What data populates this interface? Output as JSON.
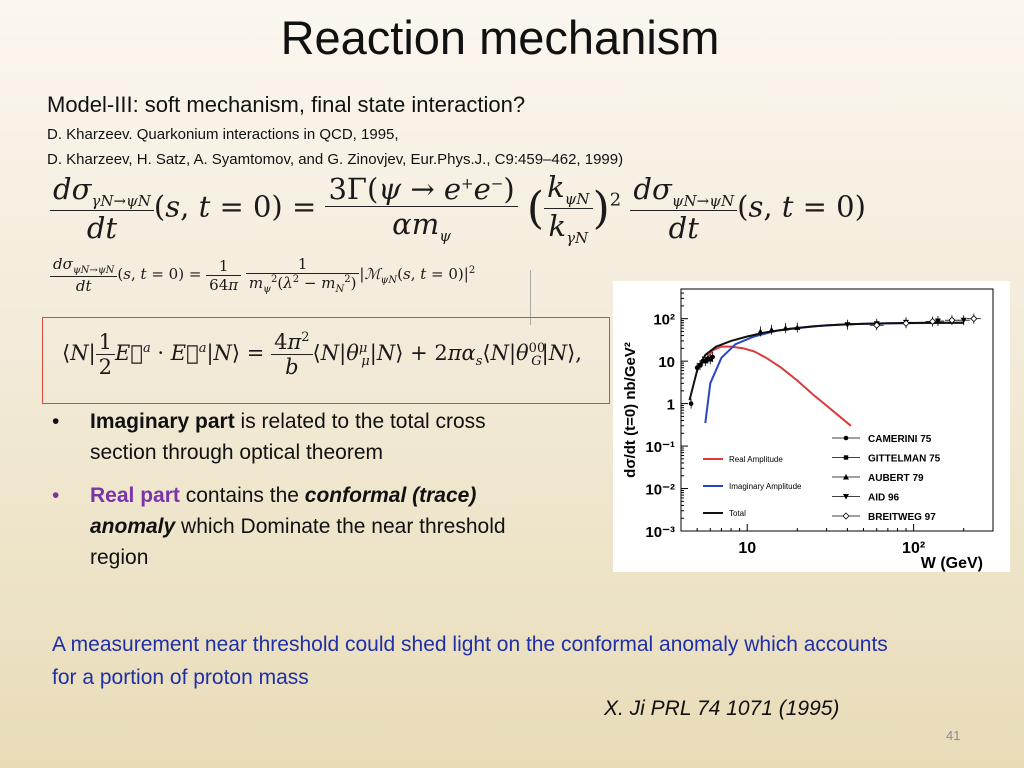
{
  "slide": {
    "title": "Reaction mechanism",
    "subtitle": "Model-III: soft mechanism, final state interaction?",
    "ref1": "D. Kharzeev. Quarkonium interactions in QCD, 1995,",
    "ref2": "D. Kharzeev, H. Satz, A. Syamtomov, and G. Zinovjev, Eur.Phys.J., C9:459–462, 1999)",
    "page_number": "41"
  },
  "equations": {
    "eq1": "dσ_{γN→ψN}/dt (s,t=0) = 3Γ(ψ→e⁺e⁻)/(α m_ψ) (k_{ψN}/k_{γN})² dσ_{ψN→ψN}/dt (s,t=0)",
    "eq2": "dσ_{ψN→ψN}/dt (s,t=0) = 1/(64π) · 1/(m_ψ²(λ²−m_N²)) |M_{ψN}(s,t=0)|²",
    "eq3": "⟨N| ½ E⃗ᵃ·E⃗ᵃ |N⟩ = 4π²/b ⟨N|θ^μ_μ|N⟩ + 2πα_s⟨N|θ^{00}_G|N⟩,"
  },
  "bullets": [
    {
      "bold": "Imaginary part",
      "rest": " is related to the total cross section through optical theorem",
      "color": "#111111"
    },
    {
      "bold": "Real part",
      "mid": " contains the ",
      "bolditalic": "conformal (trace) anomaly",
      "rest": " which Dominate the near threshold region",
      "color": "#7a34a8"
    }
  ],
  "conclusion": {
    "text": "A measurement near threshold could shed light on the conformal anomaly which accounts for a portion of proton mass",
    "color": "#1f2fa8",
    "citation": "X. Ji  PRL 74 1071 (1995)"
  },
  "chart_data": {
    "type": "line",
    "xscale": "log",
    "yscale": "log",
    "xlabel": "W (GeV)",
    "ylabel": "dσ/dt (t=0) nb/GeV²",
    "xlim": [
      4,
      300
    ],
    "ylim": [
      0.001,
      500
    ],
    "x_ticks": [
      "10",
      "10²"
    ],
    "y_ticks": [
      "10⁻³",
      "10⁻²",
      "10⁻¹",
      "1",
      "10",
      "10²"
    ],
    "series": [
      {
        "name": "Real Amplitude",
        "color": "#d93b3b",
        "x": [
          5.5,
          6.2,
          7.0,
          8.0,
          9.5,
          11,
          13,
          16,
          20,
          25,
          30,
          37,
          42
        ],
        "y": [
          9,
          18,
          22,
          22,
          20,
          17,
          12,
          7,
          3.5,
          1.6,
          0.9,
          0.45,
          0.3
        ]
      },
      {
        "name": "Imaginary Amplitude",
        "color": "#2a45c2",
        "x": [
          5.6,
          6.0,
          7.0,
          8.5,
          11,
          15,
          20,
          30,
          50,
          80,
          120,
          200
        ],
        "y": [
          0.35,
          3,
          12,
          25,
          38,
          52,
          60,
          70,
          76,
          78,
          79,
          80
        ]
      },
      {
        "name": "Total",
        "color": "#111111",
        "x": [
          4.5,
          5.0,
          5.6,
          6.5,
          8,
          10,
          13,
          18,
          25,
          40,
          70,
          120,
          200
        ],
        "y": [
          1.2,
          6,
          14,
          22,
          30,
          38,
          48,
          58,
          66,
          74,
          78,
          80,
          80
        ]
      },
      {
        "name": "CAMERINI 75",
        "marker": "circle",
        "x": [
          4.6,
          5.0,
          5.4,
          5.8,
          6.2
        ],
        "y": [
          1.0,
          7,
          10,
          11.5,
          12.5
        ]
      },
      {
        "name": "GITTELMAN 75",
        "marker": "square",
        "x": [
          5.2,
          5.6,
          6.0
        ],
        "y": [
          8,
          10,
          11
        ]
      },
      {
        "name": "AUBERT 79",
        "marker": "triangle-up",
        "x": [
          12,
          14,
          17,
          20
        ],
        "y": [
          50,
          55,
          60,
          62
        ]
      },
      {
        "name": "AID 96",
        "marker": "triangle-down",
        "x": [
          40,
          60,
          90,
          140,
          200
        ],
        "y": [
          72,
          76,
          82,
          88,
          92
        ]
      },
      {
        "name": "BREITWEG 97",
        "marker": "diamond",
        "x": [
          60,
          90,
          130,
          170,
          230
        ],
        "y": [
          70,
          78,
          86,
          92,
          100
        ]
      }
    ]
  }
}
